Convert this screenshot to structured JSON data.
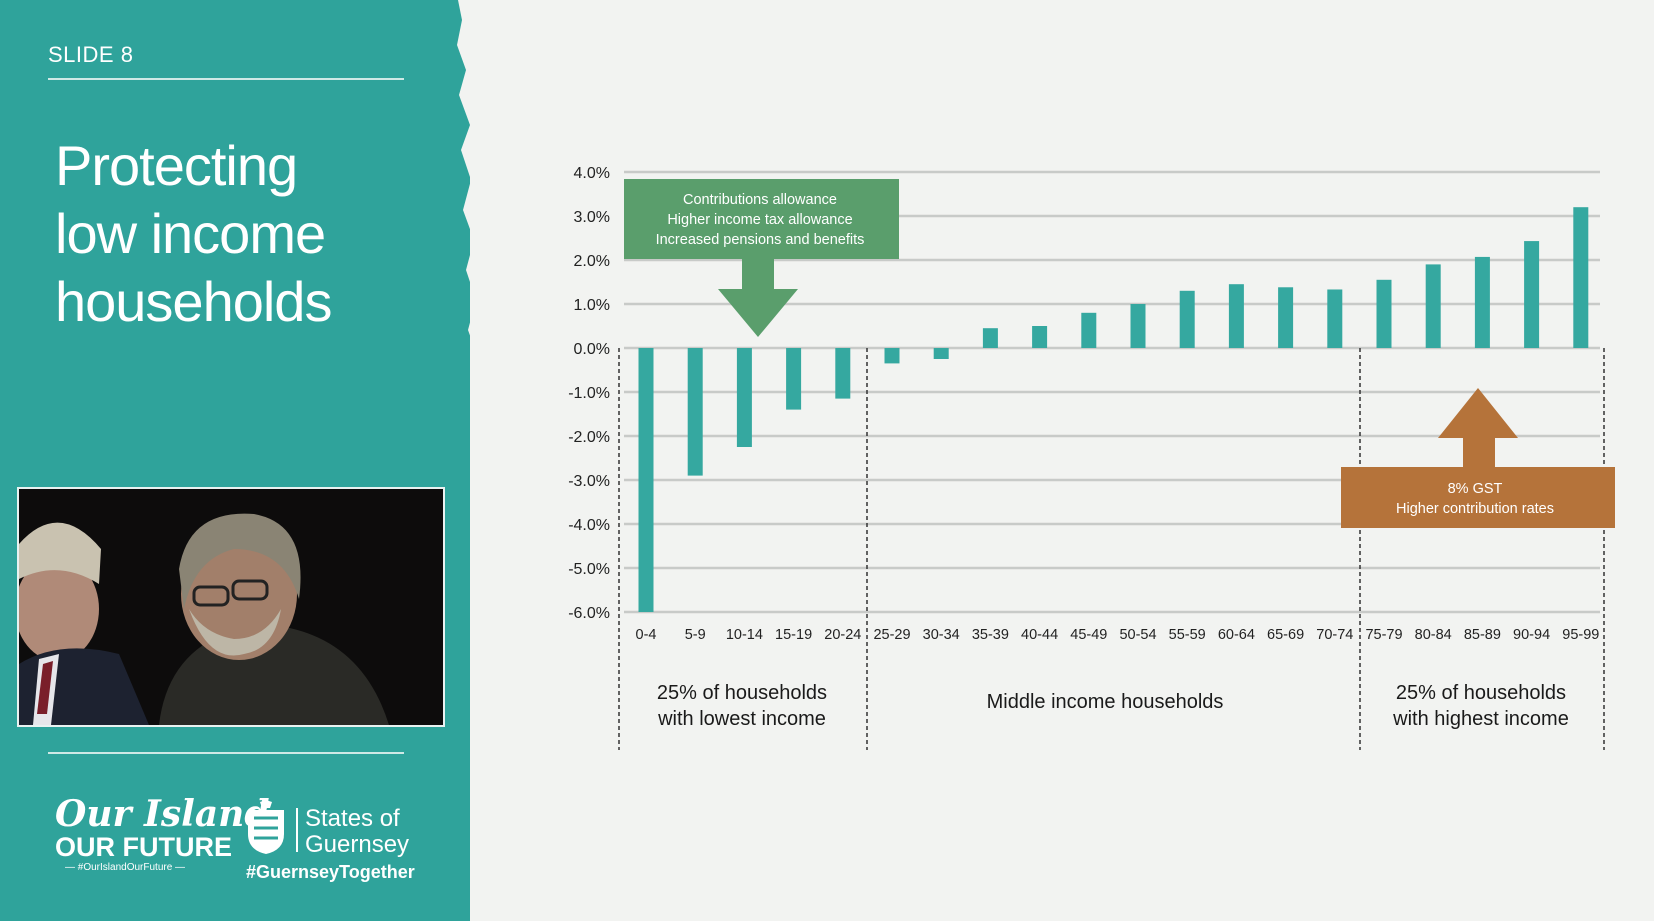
{
  "slide": {
    "label": "SLIDE 8",
    "title_lines": [
      "Protecting",
      "low income",
      "households"
    ]
  },
  "branding": {
    "logo_line1": "Our Island",
    "logo_line2": "OUR FUTURE",
    "logo_hashtag": "— #OurIslandOurFuture —",
    "gov_line1": "States of",
    "gov_line2": "Guernsey",
    "hashtag": "#GuernseyTogether"
  },
  "colors": {
    "teal": "#2fa39b",
    "bar": "#35a8a0",
    "green_callout": "#5a9e6c",
    "orange_callout": "#b5733a"
  },
  "chart_data": {
    "type": "bar",
    "categories": [
      "0-4",
      "5-9",
      "10-14",
      "15-19",
      "20-24",
      "25-29",
      "30-34",
      "35-39",
      "40-44",
      "45-49",
      "50-54",
      "55-59",
      "60-64",
      "65-69",
      "70-74",
      "75-79",
      "80-84",
      "85-89",
      "90-94",
      "95-99"
    ],
    "values": [
      -6.0,
      -2.9,
      -2.25,
      -1.4,
      -1.15,
      -0.35,
      -0.25,
      0.45,
      0.5,
      0.8,
      1.0,
      1.3,
      1.45,
      1.38,
      1.33,
      1.55,
      1.9,
      2.07,
      2.43,
      3.2
    ],
    "ylim": [
      -6.0,
      4.0
    ],
    "yticks": [
      "4.0%",
      "3.0%",
      "2.0%",
      "1.0%",
      "0.0%",
      "-1.0%",
      "-2.0%",
      "-3.0%",
      "-4.0%",
      "-5.0%",
      "-6.0%"
    ],
    "grid": true,
    "groups": [
      {
        "lines": [
          "25% of households",
          "with lowest income"
        ]
      },
      {
        "lines": [
          "Middle income households"
        ]
      },
      {
        "lines": [
          "25% of households",
          "with highest income"
        ]
      }
    ],
    "annotations": [
      {
        "lines": [
          "Contributions allowance",
          "Higher income tax allowance",
          "Increased pensions and benefits"
        ]
      },
      {
        "lines": [
          "8% GST",
          "Higher contribution rates"
        ]
      }
    ]
  }
}
